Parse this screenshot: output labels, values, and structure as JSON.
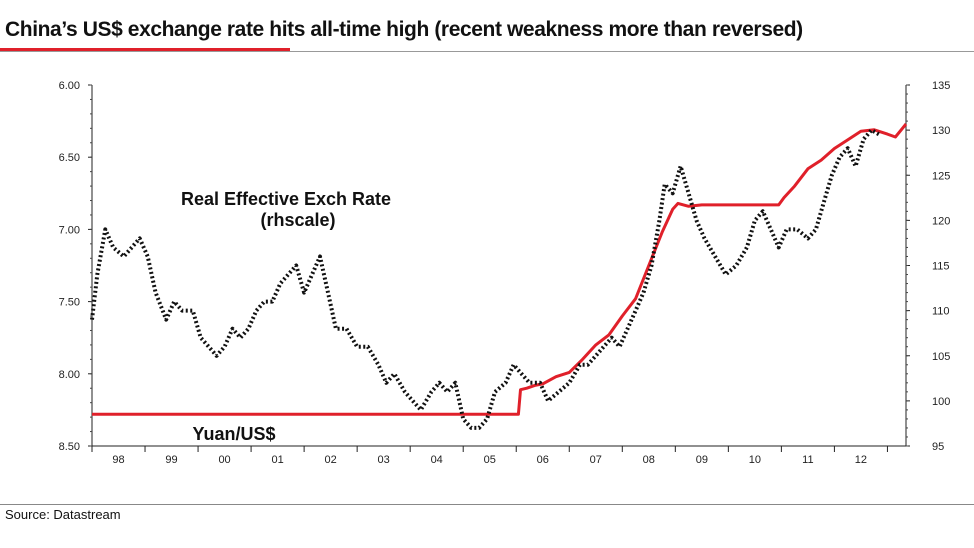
{
  "title": "China’s US$ exchange rate hits all-time high (recent weakness more than reversed)",
  "source": "Source: Datastream",
  "chart_data": {
    "type": "line",
    "x_range": [
      1997.5,
      2012.85
    ],
    "x_ticks": [
      {
        "x": 1998.0,
        "label": "98"
      },
      {
        "x": 1999.0,
        "label": "99"
      },
      {
        "x": 2000.0,
        "label": "00"
      },
      {
        "x": 2001.0,
        "label": "01"
      },
      {
        "x": 2002.0,
        "label": "02"
      },
      {
        "x": 2003.0,
        "label": "03"
      },
      {
        "x": 2004.0,
        "label": "04"
      },
      {
        "x": 2005.0,
        "label": "05"
      },
      {
        "x": 2006.0,
        "label": "06"
      },
      {
        "x": 2007.0,
        "label": "07"
      },
      {
        "x": 2008.0,
        "label": "08"
      },
      {
        "x": 2009.0,
        "label": "09"
      },
      {
        "x": 2010.0,
        "label": "10"
      },
      {
        "x": 2011.0,
        "label": "11"
      },
      {
        "x": 2012.0,
        "label": "12"
      }
    ],
    "y_left": {
      "min": 6.0,
      "max": 8.5,
      "inverted": true,
      "ticks": [
        "6.00",
        "6.50",
        "7.00",
        "7.50",
        "8.00",
        "8.50"
      ]
    },
    "y_right": {
      "min": 95,
      "max": 135,
      "ticks": [
        "95",
        "100",
        "105",
        "110",
        "115",
        "120",
        "125",
        "130",
        "135"
      ]
    },
    "annotations": {
      "reer_label_line1": "Real Effective Exch Rate",
      "reer_label_line2": "(rhscale)",
      "yuan_label": "Yuan/US$"
    },
    "series": [
      {
        "key": "yuan",
        "axis": "left",
        "color": "#e0202a",
        "style": "solid",
        "points": [
          [
            1997.5,
            8.28
          ],
          [
            2005.54,
            8.28
          ],
          [
            2005.58,
            8.11
          ],
          [
            2005.7,
            8.1
          ],
          [
            2005.85,
            8.08
          ],
          [
            2006.0,
            8.07
          ],
          [
            2006.25,
            8.02
          ],
          [
            2006.5,
            7.99
          ],
          [
            2006.75,
            7.9
          ],
          [
            2007.0,
            7.8
          ],
          [
            2007.25,
            7.73
          ],
          [
            2007.5,
            7.6
          ],
          [
            2007.75,
            7.48
          ],
          [
            2008.0,
            7.25
          ],
          [
            2008.25,
            7.02
          ],
          [
            2008.45,
            6.86
          ],
          [
            2008.55,
            6.82
          ],
          [
            2008.75,
            6.84
          ],
          [
            2009.0,
            6.83
          ],
          [
            2009.5,
            6.83
          ],
          [
            2010.0,
            6.83
          ],
          [
            2010.45,
            6.83
          ],
          [
            2010.55,
            6.78
          ],
          [
            2010.75,
            6.7
          ],
          [
            2011.0,
            6.58
          ],
          [
            2011.25,
            6.52
          ],
          [
            2011.5,
            6.44
          ],
          [
            2011.75,
            6.38
          ],
          [
            2012.0,
            6.32
          ],
          [
            2012.25,
            6.31
          ],
          [
            2012.5,
            6.34
          ],
          [
            2012.65,
            6.36
          ],
          [
            2012.85,
            6.27
          ]
        ]
      },
      {
        "key": "reer",
        "axis": "right",
        "color": "#111111",
        "style": "dotted",
        "points": [
          [
            1997.5,
            109
          ],
          [
            1997.6,
            114
          ],
          [
            1997.75,
            119
          ],
          [
            1997.9,
            117
          ],
          [
            1998.1,
            116
          ],
          [
            1998.25,
            117
          ],
          [
            1998.4,
            118
          ],
          [
            1998.55,
            116
          ],
          [
            1998.7,
            112
          ],
          [
            1998.9,
            109
          ],
          [
            1999.05,
            111
          ],
          [
            1999.2,
            110
          ],
          [
            1999.4,
            110
          ],
          [
            1999.55,
            107
          ],
          [
            1999.7,
            106
          ],
          [
            1999.85,
            105
          ],
          [
            2000.0,
            106
          ],
          [
            2000.15,
            108
          ],
          [
            2000.3,
            107
          ],
          [
            2000.45,
            108
          ],
          [
            2000.6,
            110
          ],
          [
            2000.75,
            111
          ],
          [
            2000.9,
            111
          ],
          [
            2001.05,
            113
          ],
          [
            2001.2,
            114
          ],
          [
            2001.35,
            115
          ],
          [
            2001.5,
            112
          ],
          [
            2001.65,
            114
          ],
          [
            2001.8,
            116
          ],
          [
            2001.95,
            112
          ],
          [
            2002.1,
            108
          ],
          [
            2002.3,
            108
          ],
          [
            2002.5,
            106
          ],
          [
            2002.7,
            106
          ],
          [
            2002.9,
            104
          ],
          [
            2003.05,
            102
          ],
          [
            2003.2,
            103
          ],
          [
            2003.4,
            101
          ],
          [
            2003.55,
            100
          ],
          [
            2003.7,
            99
          ],
          [
            2003.9,
            101
          ],
          [
            2004.05,
            102
          ],
          [
            2004.2,
            101
          ],
          [
            2004.35,
            102
          ],
          [
            2004.5,
            98
          ],
          [
            2004.65,
            97
          ],
          [
            2004.8,
            97
          ],
          [
            2004.95,
            98
          ],
          [
            2005.1,
            101
          ],
          [
            2005.3,
            102
          ],
          [
            2005.45,
            104
          ],
          [
            2005.6,
            103
          ],
          [
            2005.75,
            102
          ],
          [
            2005.95,
            102
          ],
          [
            2006.1,
            100
          ],
          [
            2006.3,
            101
          ],
          [
            2006.5,
            102
          ],
          [
            2006.7,
            104
          ],
          [
            2006.85,
            104
          ],
          [
            2007.0,
            105
          ],
          [
            2007.15,
            106
          ],
          [
            2007.3,
            107
          ],
          [
            2007.45,
            106
          ],
          [
            2007.6,
            108
          ],
          [
            2007.75,
            110
          ],
          [
            2007.9,
            112
          ],
          [
            2008.05,
            115
          ],
          [
            2008.2,
            120
          ],
          [
            2008.3,
            124
          ],
          [
            2008.45,
            123
          ],
          [
            2008.6,
            126
          ],
          [
            2008.75,
            123
          ],
          [
            2008.9,
            120
          ],
          [
            2009.05,
            118
          ],
          [
            2009.25,
            116
          ],
          [
            2009.45,
            114
          ],
          [
            2009.65,
            115
          ],
          [
            2009.85,
            117
          ],
          [
            2010.0,
            120
          ],
          [
            2010.15,
            121
          ],
          [
            2010.3,
            119
          ],
          [
            2010.45,
            117
          ],
          [
            2010.6,
            119
          ],
          [
            2010.8,
            119
          ],
          [
            2011.0,
            118
          ],
          [
            2011.15,
            119
          ],
          [
            2011.3,
            122
          ],
          [
            2011.45,
            125
          ],
          [
            2011.6,
            127
          ],
          [
            2011.75,
            128
          ],
          [
            2011.9,
            126
          ],
          [
            2012.05,
            129
          ],
          [
            2012.2,
            130
          ],
          [
            2012.35,
            129.5
          ]
        ]
      }
    ]
  }
}
